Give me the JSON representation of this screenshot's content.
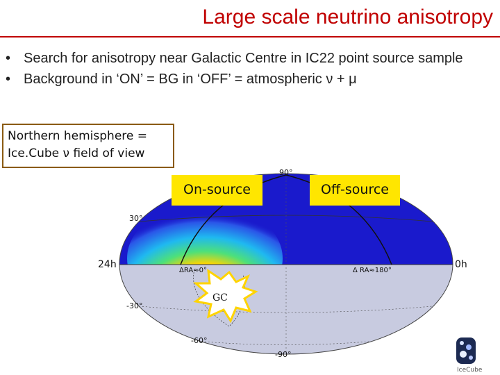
{
  "slide": {
    "title": "Large scale neutrino anisotropy",
    "bullets": [
      "Search for anisotropy near Galactic Centre in IC22 point source sample",
      "Background in ‘ON’ = BG in ‘OFF’ = atmospheric ν + μ"
    ],
    "callout": {
      "line1": "Northern hemisphere =",
      "line2": "Ice.Cube ν field of view"
    },
    "on_source_label": "On-source",
    "off_source_label": "Off-source",
    "ra_left_label": "24h",
    "ra_right_label": "0h",
    "gc_label": "GC",
    "skymap": {
      "dec_labels": [
        "90°",
        "30°",
        "-30°",
        "-60°",
        "-90°"
      ],
      "ra_labels": [
        "ΔRA≈0°",
        "Δ RA≈180°"
      ]
    },
    "logo_text": "IceCube"
  },
  "colors": {
    "title": "#c00000",
    "north_sky": "#1a1acc",
    "south_sky": "#c8cbe0",
    "label_fill": "#ffe600",
    "callout_border": "#8a5a12"
  }
}
